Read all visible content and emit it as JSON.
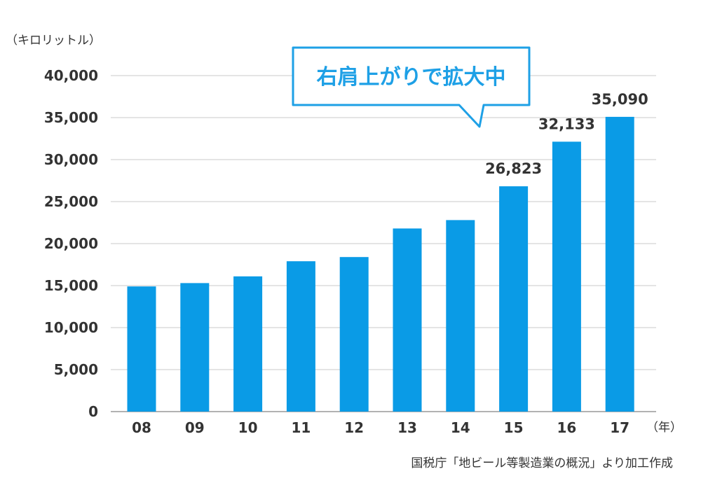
{
  "colors": {
    "bar": "#0a9be6",
    "grid": "#c8c8c8",
    "axis": "#999999",
    "text": "#333333",
    "callout_border": "#1ea0e6",
    "callout_text": "#1ea0e6"
  },
  "y_unit": "（キロリットル）",
  "x_unit": "（年）",
  "source": "国税庁「地ビール等製造業の概況」より加工作成",
  "callout": "右肩上がりで拡大中",
  "chart_data": {
    "type": "bar",
    "y_unit": "（キロリットル）",
    "x_unit": "（年）",
    "categories": [
      "08",
      "09",
      "10",
      "11",
      "12",
      "13",
      "14",
      "15",
      "16",
      "17"
    ],
    "values": [
      14900,
      15300,
      16100,
      17900,
      18400,
      21800,
      22800,
      26823,
      32133,
      35090
    ],
    "value_labels": [
      "",
      "",
      "",
      "",
      "",
      "",
      "",
      "26,823",
      "32,133",
      "35,090"
    ],
    "ylim": [
      0,
      40000
    ],
    "yticks": [
      0,
      5000,
      10000,
      15000,
      20000,
      25000,
      30000,
      35000,
      40000
    ],
    "ytick_labels": [
      "0",
      "5,000",
      "10,000",
      "15,000",
      "20,000",
      "25,000",
      "30,000",
      "35,000",
      "40,000"
    ],
    "grid": true,
    "annotation": "右肩上がりで拡大中",
    "source": "国税庁「地ビール等製造業の概況」より加工作成"
  }
}
